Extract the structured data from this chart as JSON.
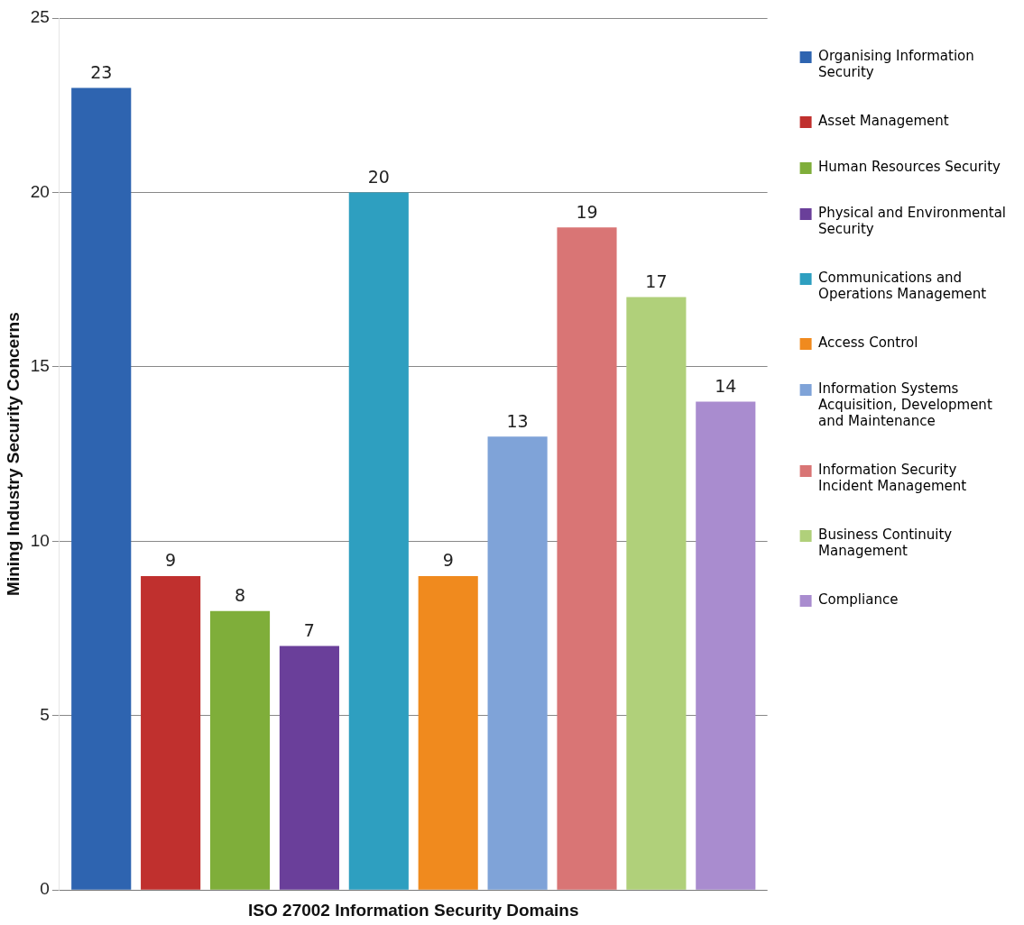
{
  "chart_data": {
    "type": "bar",
    "xlabel": "ISO 27002 Information Security Domains",
    "ylabel": "Mining Industry Security Concerns",
    "categories": [
      null
    ],
    "series": [
      {
        "name": "Organising Information Security",
        "color": "#2e64b0",
        "values": [
          23
        ]
      },
      {
        "name": "Asset Management",
        "color": "#c0302e",
        "values": [
          9
        ]
      },
      {
        "name": "Human Resources Security",
        "color": "#7fae3a",
        "values": [
          8
        ]
      },
      {
        "name": "Physical and Environmental Security",
        "color": "#6a3f9a",
        "values": [
          7
        ]
      },
      {
        "name": "Communications and Operations Management",
        "color": "#2e9fc0",
        "values": [
          20
        ]
      },
      {
        "name": "Access Control",
        "color": "#f08a1e",
        "values": [
          9
        ]
      },
      {
        "name": "Information Systems Acquisition, Development and Maintenance",
        "color": "#7fa3d8",
        "values": [
          13
        ]
      },
      {
        "name": "Information Security Incident Management",
        "color": "#d97575",
        "values": [
          19
        ]
      },
      {
        "name": "Business Continuity Management",
        "color": "#b0d07a",
        "values": [
          17
        ]
      },
      {
        "name": "Compliance",
        "color": "#a98ccf",
        "values": [
          14
        ]
      }
    ],
    "ylim": [
      0,
      25
    ],
    "yticks": [
      0,
      5,
      10,
      15,
      20,
      25
    ],
    "grid": "y",
    "data_labels": true,
    "legend": "right",
    "tick_labels": "y"
  }
}
